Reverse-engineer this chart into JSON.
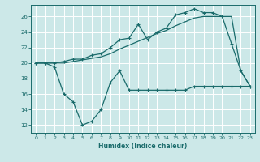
{
  "xlabel": "Humidex (Indice chaleur)",
  "xlim": [
    -0.5,
    23.5
  ],
  "ylim": [
    11,
    27.5
  ],
  "yticks": [
    12,
    14,
    16,
    18,
    20,
    22,
    24,
    26
  ],
  "xticks": [
    0,
    1,
    2,
    3,
    4,
    5,
    6,
    7,
    8,
    9,
    10,
    11,
    12,
    13,
    14,
    15,
    16,
    17,
    18,
    19,
    20,
    21,
    22,
    23
  ],
  "bg_color": "#cce8e8",
  "grid_color": "#aad4d4",
  "line_color": "#1a6b6b",
  "line1_x": [
    0,
    1,
    2,
    3,
    4,
    5,
    6,
    7,
    8,
    9,
    10,
    11,
    12,
    13,
    14,
    15,
    16,
    17,
    18,
    19,
    20,
    21,
    22,
    23
  ],
  "line1_y": [
    20,
    20,
    20,
    20.2,
    20.5,
    20.5,
    21,
    21.2,
    22,
    23,
    23.2,
    25,
    23,
    24,
    24.5,
    26.2,
    26.5,
    27,
    26.5,
    26.5,
    26,
    22.5,
    19,
    17
  ],
  "line2_x": [
    0,
    1,
    2,
    3,
    4,
    5,
    6,
    7,
    8,
    9,
    10,
    11,
    12,
    13,
    14,
    15,
    16,
    17,
    18,
    19,
    20,
    21,
    22,
    23
  ],
  "line2_y": [
    20,
    20,
    20,
    20,
    20.2,
    20.4,
    20.6,
    20.8,
    21.2,
    21.8,
    22.3,
    22.8,
    23.3,
    23.8,
    24.2,
    24.8,
    25.3,
    25.8,
    26,
    26,
    26,
    26,
    19,
    17
  ],
  "line3_x": [
    0,
    1,
    2,
    3,
    4,
    5,
    6,
    7,
    8,
    9,
    10,
    11,
    12,
    13,
    14,
    15,
    16,
    17,
    18,
    19,
    20,
    21,
    22,
    23
  ],
  "line3_y": [
    20,
    20,
    19.5,
    16,
    15,
    12,
    12.5,
    14,
    17.5,
    19,
    16.5,
    16.5,
    16.5,
    16.5,
    16.5,
    16.5,
    16.5,
    17,
    17,
    17,
    17,
    17,
    17,
    17
  ]
}
